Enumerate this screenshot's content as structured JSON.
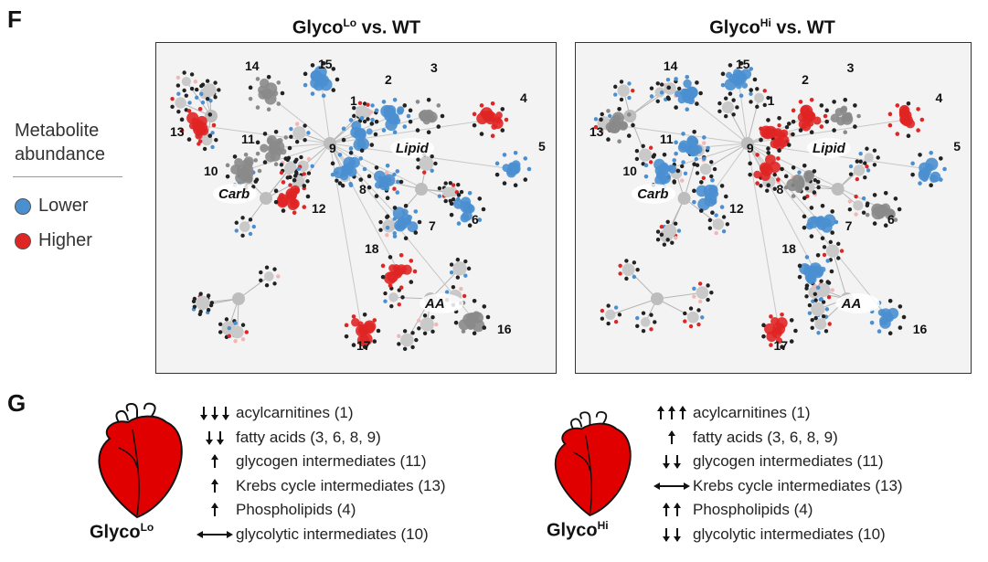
{
  "figure": {
    "panel_f_letter": "F",
    "panel_g_letter": "G"
  },
  "legend": {
    "title_line1": "Metabolite",
    "title_line2": "abundance",
    "lower_label": "Lower",
    "higher_label": "Higher",
    "lower_color": "#4a8fd0",
    "higher_color": "#e02525"
  },
  "networks": [
    {
      "title_main": "Glyco",
      "title_sup": "Lo",
      "title_rest": " vs. WT",
      "labels": {
        "lipid": "Lipid",
        "carb": "Carb",
        "aa": "AA",
        "n1": "1",
        "n2": "2",
        "n3": "3",
        "n4": "4",
        "n5": "5",
        "n6": "6",
        "n7": "7",
        "n8": "8",
        "n9": "9",
        "n10": "10",
        "n11": "11",
        "n12": "12",
        "n13": "13",
        "n14": "14",
        "n15": "15",
        "n16": "16",
        "n17": "17",
        "n18": "18"
      },
      "cluster_colors": {
        "c1": "#4a8fd0",
        "c2": "#4a8fd0",
        "c3": "#8a8a8a",
        "c4": "#e02525",
        "c5": "#4a8fd0",
        "c6": "#4a8fd0",
        "c7": "#4a8fd0",
        "c8": "#4a8fd0",
        "c9": "#4a8fd0",
        "c10": "#8a8a8a",
        "c11": "#8a8a8a",
        "c12": "#e02525",
        "c13": "#e02525",
        "c14": "#8a8a8a",
        "c15": "#4a8fd0",
        "c16": "#8a8a8a",
        "c17": "#e02525",
        "c18": "#e02525"
      }
    },
    {
      "title_main": "Glyco",
      "title_sup": "Hi",
      "title_rest": " vs. WT",
      "labels": {
        "lipid": "Lipid",
        "carb": "Carb",
        "aa": "AA",
        "n1": "1",
        "n2": "2",
        "n3": "3",
        "n4": "4",
        "n5": "5",
        "n6": "6",
        "n7": "7",
        "n8": "8",
        "n9": "9",
        "n10": "10",
        "n11": "11",
        "n12": "12",
        "n13": "13",
        "n14": "14",
        "n15": "15",
        "n16": "16",
        "n17": "17",
        "n18": "18"
      },
      "cluster_colors": {
        "c1": "#e02525",
        "c2": "#e02525",
        "c3": "#8a8a8a",
        "c4": "#e02525",
        "c5": "#4a8fd0",
        "c6": "#8a8a8a",
        "c7": "#4a8fd0",
        "c8": "#8a8a8a",
        "c9": "#e02525",
        "c10": "#4a8fd0",
        "c11": "#4a8fd0",
        "c12": "#4a8fd0",
        "c13": "#8a8a8a",
        "c14": "#4a8fd0",
        "c15": "#4a8fd0",
        "c16": "#4a8fd0",
        "c17": "#e02525",
        "c18": "#4a8fd0"
      }
    }
  ],
  "hearts": [
    {
      "label_main": "Glyco",
      "label_sup": "Lo",
      "heart_color": "#e00000",
      "changes": [
        {
          "arrows": "down3",
          "text": "acylcarnitines (1)"
        },
        {
          "arrows": "down2",
          "text": "fatty acids (3, 6, 8, 9)"
        },
        {
          "arrows": "up1",
          "text": "glycogen intermediates (11)"
        },
        {
          "arrows": "up1",
          "text": "Krebs cycle intermediates (13)"
        },
        {
          "arrows": "up1",
          "text": "Phospholipids (4)"
        },
        {
          "arrows": "both",
          "text": "glycolytic intermediates (10)"
        }
      ]
    },
    {
      "label_main": "Glyco",
      "label_sup": "Hi",
      "heart_color": "#e00000",
      "changes": [
        {
          "arrows": "up3",
          "text": "acylcarnitines (1)"
        },
        {
          "arrows": "up1",
          "text": "fatty acids (3, 6, 8, 9)"
        },
        {
          "arrows": "down2",
          "text": "glycogen intermediates (11)"
        },
        {
          "arrows": "both",
          "text": "Krebs cycle intermediates (13)"
        },
        {
          "arrows": "up2",
          "text": "Phospholipids (4)"
        },
        {
          "arrows": "down2",
          "text": "glycolytic intermediates (10)"
        }
      ]
    }
  ]
}
